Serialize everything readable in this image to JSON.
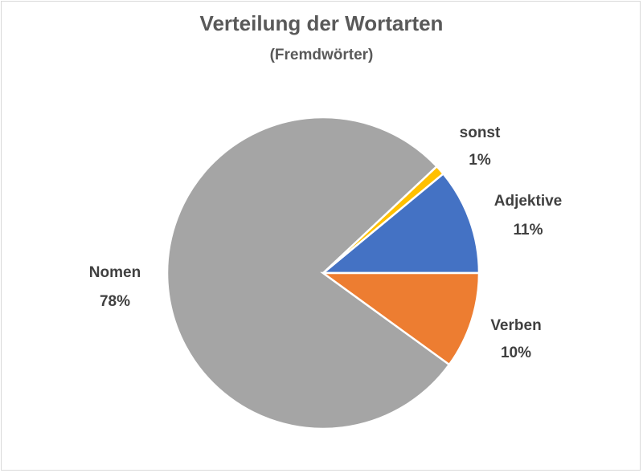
{
  "chart_data": {
    "type": "pie",
    "title": "Verteilung der Wortarten",
    "subtitle": "(Fremdwörter)",
    "slices": [
      {
        "name": "Adjektive",
        "value": 11,
        "percent_label": "11%",
        "color": "#4472c4"
      },
      {
        "name": "sonst",
        "value": 1,
        "percent_label": "1%",
        "color": "#ffc000"
      },
      {
        "name": "Nomen",
        "value": 78,
        "percent_label": "78%",
        "color": "#a5a5a5"
      },
      {
        "name": "Verben",
        "value": 10,
        "percent_label": "10%",
        "color": "#ed7d31"
      }
    ],
    "legend": "none"
  }
}
